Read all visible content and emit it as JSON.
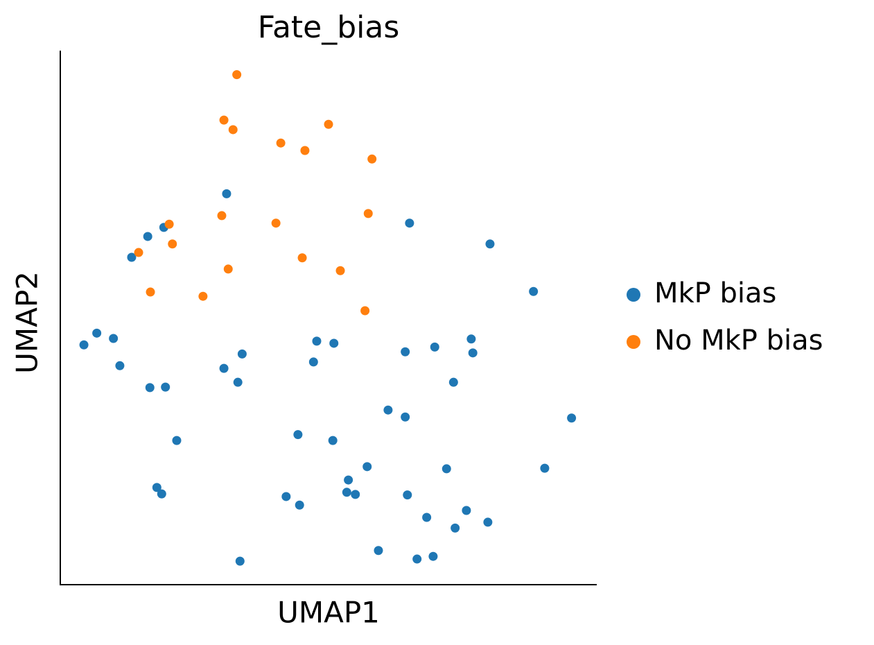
{
  "chart_data": {
    "type": "scatter",
    "title": "Fate_bias",
    "x_label": "UMAP1",
    "y_label": "UMAP2",
    "xlim": [
      0,
      100
    ],
    "ylim": [
      0,
      100
    ],
    "grid": false,
    "legend": "right",
    "series": [
      {
        "name": "MkP bias",
        "color": "#1f77b4",
        "x": [
          31.0,
          65.1,
          80.1,
          19.3,
          16.3,
          13.3,
          88.2,
          4.4,
          6.8,
          9.9,
          11.1,
          16.7,
          19.6,
          33.9,
          30.5,
          33.1,
          47.8,
          51.0,
          47.2,
          64.3,
          69.8,
          76.6,
          76.9,
          73.3,
          61.1,
          64.3,
          95.3,
          21.7,
          44.3,
          50.8,
          57.2,
          72.0,
          90.3,
          53.7,
          18.0,
          18.9,
          42.1,
          44.6,
          53.4,
          55.0,
          64.7,
          68.3,
          75.7,
          73.6,
          79.7,
          59.3,
          66.5,
          69.5,
          33.5
        ],
        "values": [
          73.2,
          67.7,
          63.8,
          66.9,
          65.2,
          61.3,
          54.9,
          44.9,
          47.1,
          46.1,
          41.0,
          36.9,
          37.0,
          43.2,
          40.5,
          37.9,
          45.6,
          45.2,
          41.7,
          43.6,
          44.5,
          46.0,
          43.4,
          37.9,
          32.7,
          31.4,
          31.2,
          27.0,
          28.1,
          27.0,
          22.1,
          21.7,
          21.8,
          19.6,
          18.2,
          17.0,
          16.5,
          14.9,
          17.3,
          16.9,
          16.8,
          12.6,
          13.9,
          10.6,
          11.7,
          6.4,
          4.8,
          5.3,
          4.4
        ]
      },
      {
        "name": "No MkP bias",
        "color": "#ff7f0e",
        "x": [
          32.9,
          30.5,
          32.2,
          50.0,
          41.1,
          45.6,
          58.1,
          57.4,
          30.1,
          40.2,
          20.3,
          20.9,
          14.6,
          31.3,
          45.1,
          52.2,
          16.8,
          26.6,
          56.8
        ],
        "values": [
          95.5,
          87.0,
          85.2,
          86.2,
          82.7,
          81.3,
          79.7,
          69.5,
          69.1,
          67.7,
          67.5,
          63.8,
          62.2,
          59.1,
          61.2,
          58.8,
          54.8,
          54.0,
          51.3
        ]
      }
    ]
  }
}
